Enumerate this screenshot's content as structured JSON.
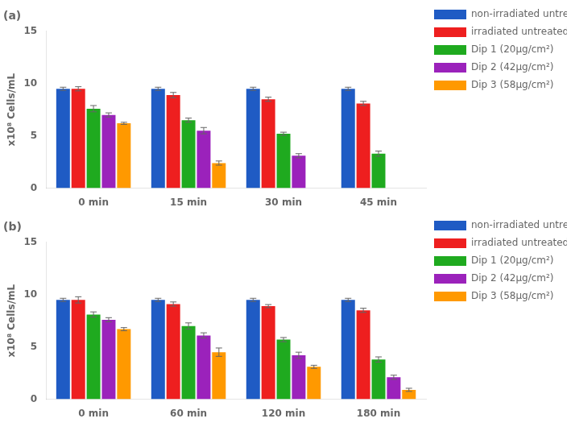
{
  "chart_data": [
    {
      "type": "bar",
      "title": "(a)",
      "categories": [
        "0 min",
        "15 min",
        "30 min",
        "45 min"
      ],
      "series": [
        {
          "name": "non-irradiated untreated",
          "color": "#1f5bc4",
          "values": [
            9.5,
            9.5,
            9.5,
            9.5
          ],
          "errors": [
            0.15,
            0.15,
            0.15,
            0.15
          ]
        },
        {
          "name": "irradiated untreated",
          "color": "#ee1f1f",
          "values": [
            9.5,
            8.9,
            8.5,
            8.1
          ],
          "errors": [
            0.2,
            0.25,
            0.2,
            0.2
          ]
        },
        {
          "name": "Dip 1 (20μg/cm²)",
          "color": "#1faa1f",
          "values": [
            7.6,
            6.5,
            5.2,
            3.3
          ],
          "errors": [
            0.3,
            0.2,
            0.15,
            0.25
          ]
        },
        {
          "name": "Dip 2 (42μg/cm²)",
          "color": "#9b22bb",
          "values": [
            7.0,
            5.5,
            3.1,
            null
          ],
          "errors": [
            0.2,
            0.3,
            0.2,
            0.0
          ]
        },
        {
          "name": "Dip 3 (58μg/cm²)",
          "color": "#ff9900",
          "values": [
            6.2,
            2.4,
            null,
            null
          ],
          "errors": [
            0.1,
            0.2,
            0.0,
            0.0
          ]
        }
      ],
      "ylabel": "x10⁸ Cells/mL",
      "ylim": [
        0,
        15
      ],
      "yticks": [
        0,
        5,
        10,
        15
      ],
      "grid": false,
      "legend": "right"
    },
    {
      "type": "bar",
      "title": "(b)",
      "categories": [
        "0 min",
        "60 min",
        "120 min",
        "180 min"
      ],
      "series": [
        {
          "name": "non-irradiated untreated",
          "color": "#1f5bc4",
          "values": [
            9.5,
            9.5,
            9.5,
            9.5
          ],
          "errors": [
            0.15,
            0.15,
            0.15,
            0.15
          ]
        },
        {
          "name": "irradiated untreated",
          "color": "#ee1f1f",
          "values": [
            9.5,
            9.1,
            8.9,
            8.5
          ],
          "errors": [
            0.3,
            0.2,
            0.15,
            0.2
          ]
        },
        {
          "name": "Dip 1 (20μg/cm²)",
          "color": "#1faa1f",
          "values": [
            8.1,
            7.0,
            5.7,
            3.8
          ],
          "errors": [
            0.25,
            0.3,
            0.2,
            0.25
          ]
        },
        {
          "name": "Dip 2 (42μg/cm²)",
          "color": "#9b22bb",
          "values": [
            7.6,
            6.1,
            4.2,
            2.1
          ],
          "errors": [
            0.2,
            0.25,
            0.3,
            0.2
          ]
        },
        {
          "name": "Dip 3 (58μg/cm²)",
          "color": "#ff9900",
          "values": [
            6.7,
            4.5,
            3.1,
            0.9
          ],
          "errors": [
            0.15,
            0.4,
            0.15,
            0.15
          ]
        }
      ],
      "ylabel": "x10⁸ Cells/mL",
      "ylim": [
        0,
        15
      ],
      "yticks": [
        0,
        5,
        10,
        15
      ],
      "grid": false,
      "legend": "right"
    }
  ]
}
